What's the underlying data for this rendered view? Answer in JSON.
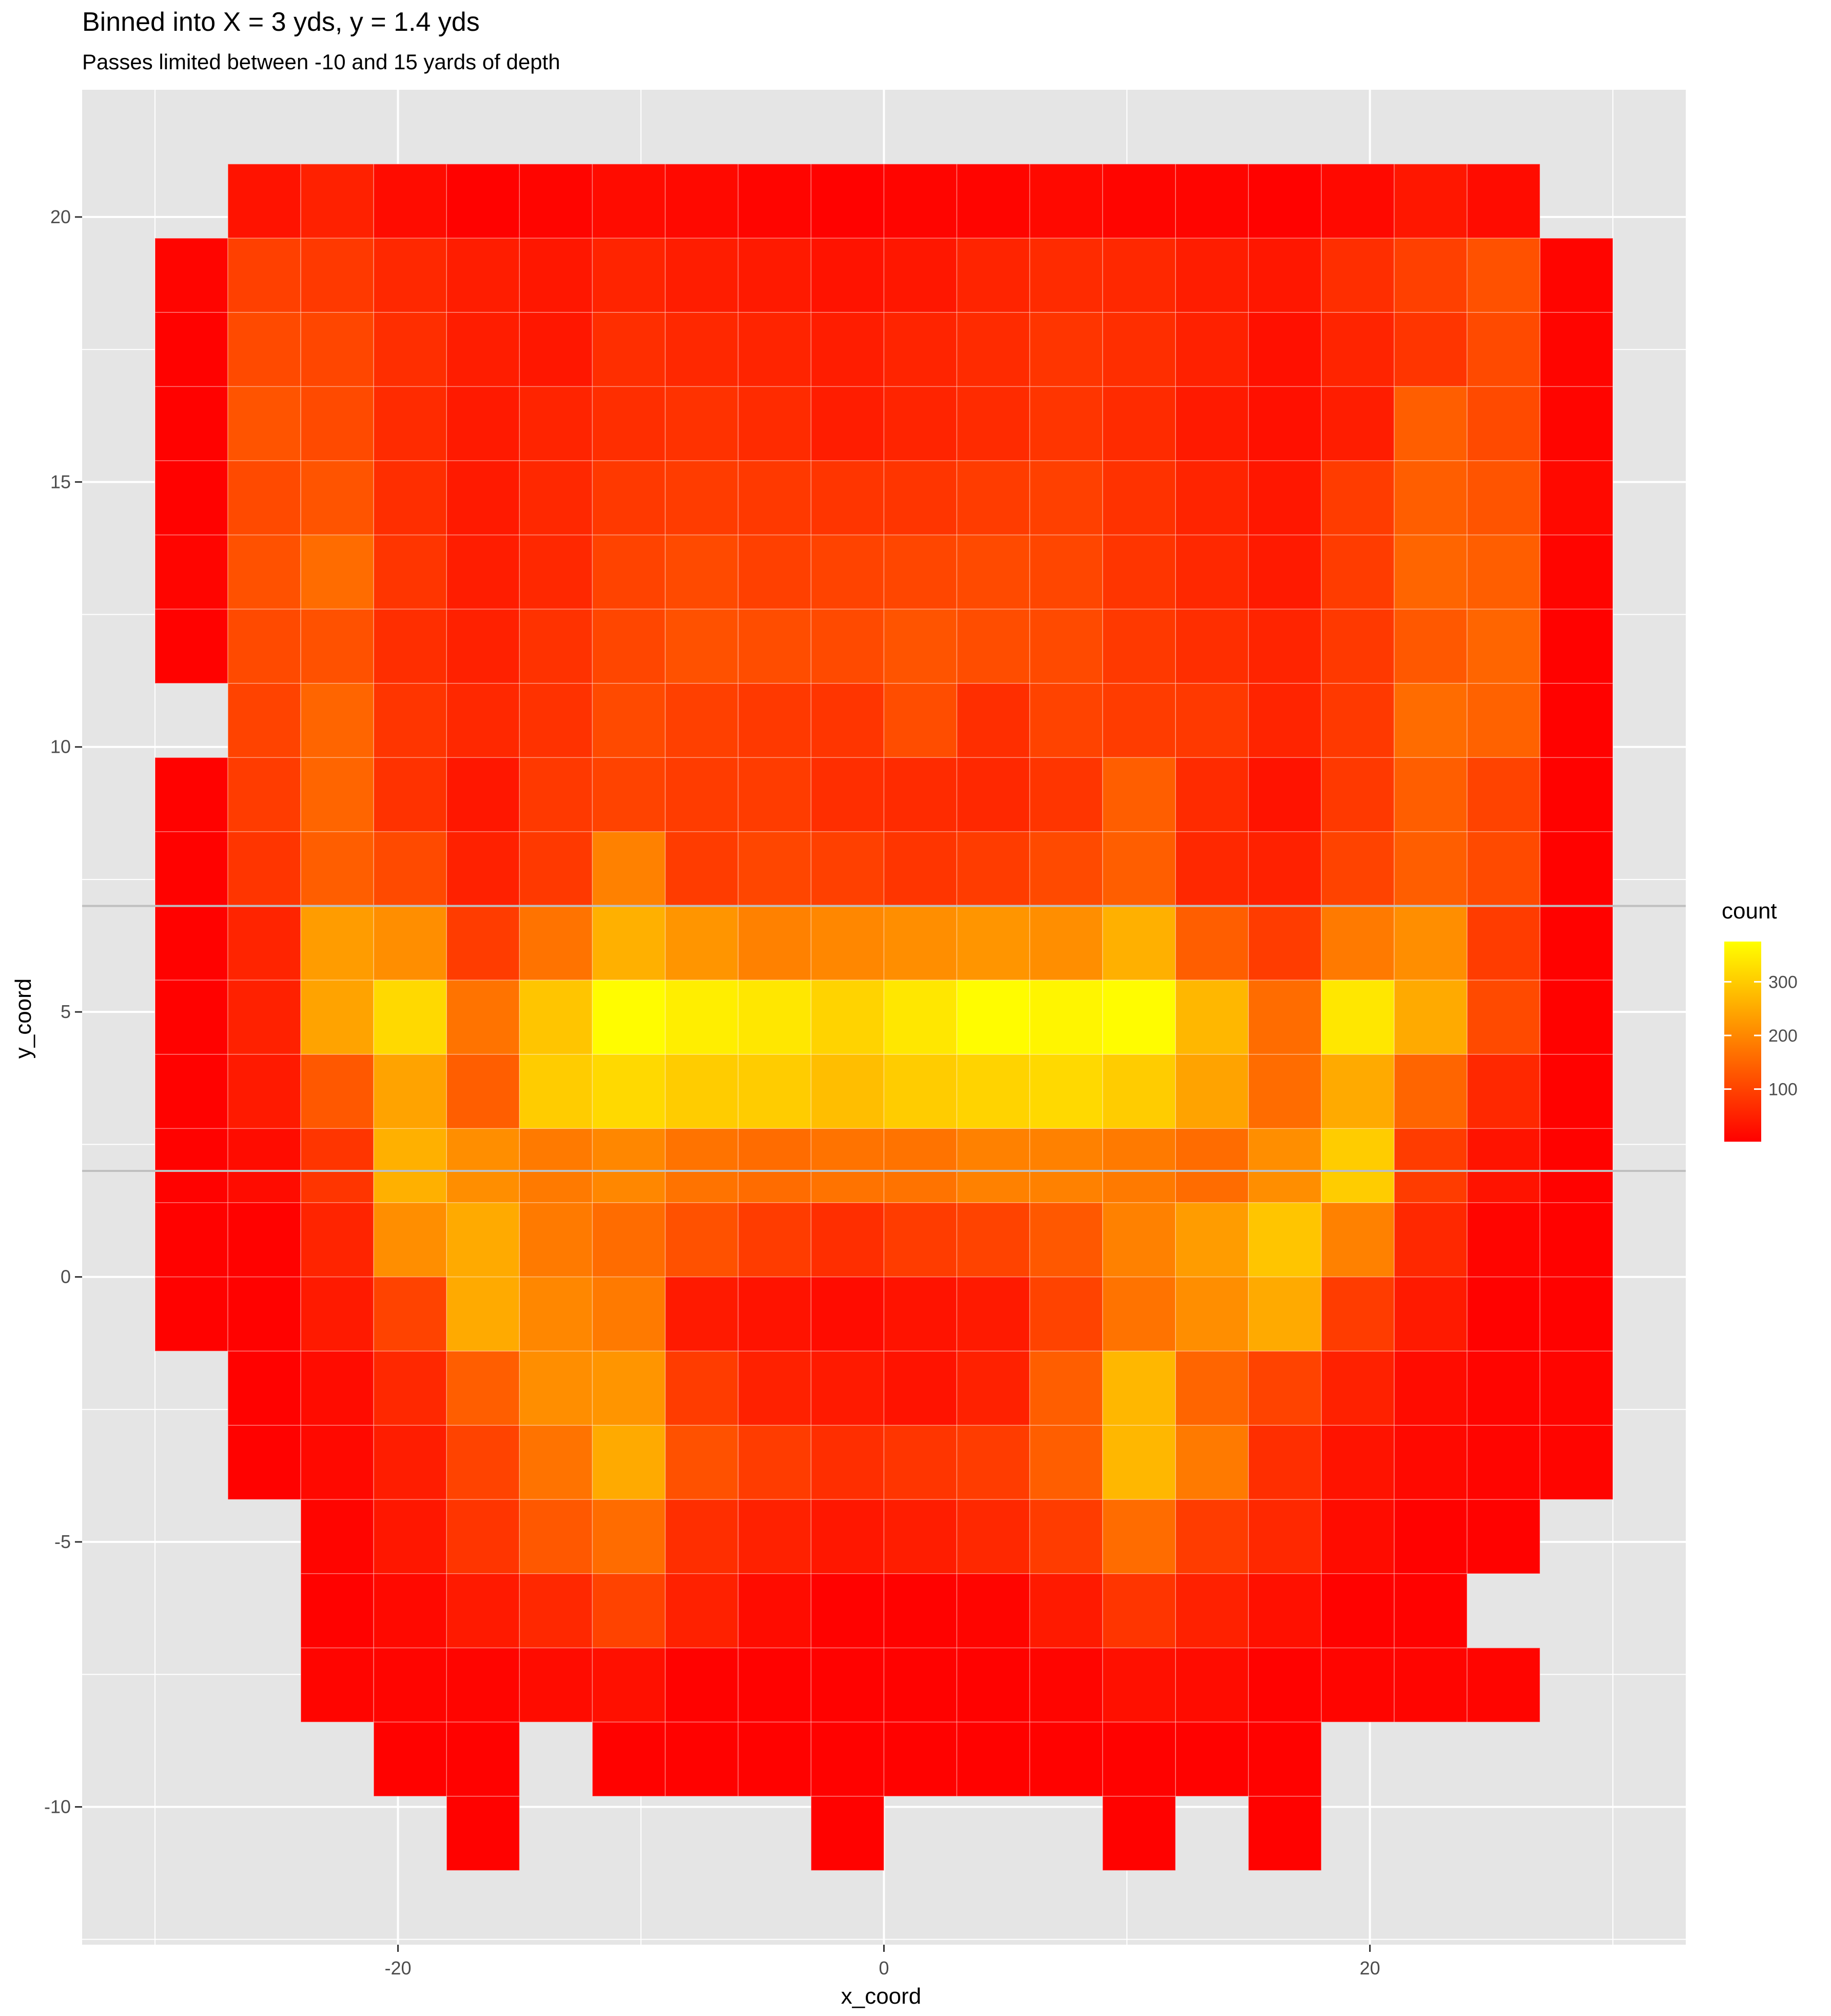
{
  "chart_data": {
    "type": "heatmap",
    "title": "Binned into X = 3 yds, y = 1.4 yds",
    "subtitle": "Passes limited between -10 and 15 yards of depth",
    "xlabel": "x_coord",
    "ylabel": "y_coord",
    "xlim": [
      -33,
      33
    ],
    "ylim": [
      -12.6,
      22.4
    ],
    "x_ticks": [
      -20,
      0,
      20
    ],
    "y_ticks": [
      -10,
      -5,
      0,
      5,
      10,
      15,
      20
    ],
    "bin_width_x": 3,
    "bin_height_y": 1.4,
    "x_centers": [
      -28.5,
      -25.5,
      -22.5,
      -19.5,
      -16.5,
      -13.5,
      -10.5,
      -7.5,
      -4.5,
      -1.5,
      1.5,
      4.5,
      7.5,
      10.5,
      13.5,
      16.5,
      19.5,
      22.5,
      25.5,
      28.5
    ],
    "y_centers": [
      20.3,
      18.9,
      17.5,
      16.1,
      14.7,
      13.3,
      11.9,
      10.5,
      9.1,
      7.7,
      6.3,
      4.9,
      3.5,
      2.1,
      0.7,
      -0.7,
      -2.1,
      -3.5,
      -4.9,
      -6.3,
      -7.7,
      -9.1,
      -10.5
    ],
    "counts": [
      [
        null,
        30,
        50,
        20,
        5,
        10,
        20,
        15,
        10,
        5,
        10,
        10,
        15,
        10,
        10,
        5,
        15,
        35,
        20,
        null
      ],
      [
        10,
        95,
        85,
        60,
        45,
        35,
        55,
        45,
        40,
        30,
        35,
        55,
        65,
        60,
        45,
        35,
        70,
        95,
        120,
        10
      ],
      [
        5,
        110,
        105,
        70,
        45,
        35,
        70,
        60,
        55,
        45,
        55,
        65,
        80,
        70,
        50,
        25,
        55,
        80,
        110,
        10
      ],
      [
        5,
        125,
        110,
        65,
        40,
        55,
        70,
        75,
        65,
        45,
        55,
        65,
        80,
        65,
        40,
        25,
        45,
        140,
        110,
        10
      ],
      [
        5,
        110,
        125,
        70,
        40,
        60,
        85,
        90,
        85,
        80,
        80,
        90,
        95,
        75,
        55,
        35,
        90,
        140,
        125,
        15
      ],
      [
        10,
        120,
        160,
        80,
        45,
        60,
        100,
        110,
        95,
        100,
        105,
        110,
        105,
        80,
        60,
        40,
        90,
        150,
        140,
        10
      ],
      [
        5,
        110,
        120,
        70,
        50,
        75,
        105,
        120,
        115,
        110,
        125,
        115,
        110,
        85,
        70,
        55,
        85,
        130,
        150,
        5
      ],
      [
        null,
        100,
        150,
        80,
        60,
        75,
        110,
        95,
        85,
        80,
        115,
        70,
        100,
        90,
        85,
        55,
        85,
        160,
        145,
        5
      ],
      [
        5,
        90,
        150,
        75,
        35,
        85,
        100,
        90,
        90,
        70,
        65,
        60,
        80,
        140,
        65,
        30,
        85,
        140,
        100,
        5
      ],
      [
        5,
        80,
        140,
        110,
        50,
        85,
        190,
        90,
        105,
        95,
        80,
        90,
        110,
        140,
        60,
        50,
        100,
        140,
        110,
        5
      ],
      [
        5,
        55,
        230,
        210,
        90,
        170,
        260,
        220,
        190,
        200,
        210,
        220,
        210,
        260,
        140,
        90,
        180,
        210,
        90,
        5
      ],
      [
        5,
        50,
        240,
        320,
        170,
        290,
        370,
        350,
        340,
        310,
        340,
        370,
        360,
        370,
        270,
        160,
        340,
        250,
        110,
        5
      ],
      [
        5,
        40,
        130,
        240,
        140,
        300,
        320,
        300,
        300,
        280,
        300,
        310,
        320,
        300,
        240,
        160,
        250,
        150,
        60,
        5
      ],
      [
        5,
        20,
        80,
        260,
        210,
        180,
        200,
        170,
        160,
        170,
        170,
        190,
        190,
        180,
        160,
        210,
        300,
        90,
        30,
        5
      ],
      [
        5,
        5,
        55,
        210,
        250,
        180,
        160,
        120,
        90,
        70,
        90,
        100,
        130,
        190,
        230,
        290,
        190,
        60,
        10,
        5
      ],
      [
        5,
        5,
        40,
        100,
        250,
        200,
        180,
        40,
        30,
        20,
        30,
        40,
        100,
        170,
        210,
        250,
        90,
        40,
        5,
        5
      ],
      [
        null,
        5,
        20,
        60,
        140,
        210,
        220,
        90,
        50,
        40,
        30,
        50,
        140,
        270,
        150,
        100,
        50,
        20,
        10,
        10
      ],
      [
        null,
        5,
        15,
        45,
        100,
        170,
        250,
        120,
        90,
        70,
        80,
        90,
        140,
        270,
        180,
        70,
        30,
        15,
        10,
        10
      ],
      [
        null,
        null,
        10,
        35,
        80,
        130,
        160,
        70,
        50,
        35,
        45,
        60,
        90,
        160,
        90,
        60,
        20,
        5,
        5,
        null
      ],
      [
        null,
        null,
        5,
        15,
        40,
        60,
        100,
        50,
        20,
        5,
        5,
        10,
        40,
        80,
        50,
        25,
        5,
        5,
        null,
        null
      ],
      [
        null,
        null,
        10,
        10,
        10,
        20,
        25,
        5,
        5,
        5,
        5,
        5,
        10,
        25,
        20,
        5,
        10,
        10,
        10,
        null
      ],
      [
        null,
        null,
        null,
        5,
        5,
        null,
        5,
        5,
        5,
        5,
        5,
        5,
        5,
        5,
        5,
        5,
        null,
        null,
        null,
        null
      ],
      [
        null,
        null,
        null,
        null,
        5,
        null,
        null,
        null,
        null,
        5,
        null,
        null,
        null,
        5,
        null,
        5,
        null,
        null,
        null,
        null
      ]
    ],
    "hlines": [
      2,
      7
    ],
    "legend": {
      "title": "count",
      "ticks": [
        100,
        200,
        300
      ],
      "range": [
        2,
        375
      ],
      "color_low": "#ff0000",
      "color_high": "#ffff00",
      "placement": "right"
    },
    "colors": {
      "panel": "#e5e5e5",
      "grid": "#ffffff",
      "hline": "#bfbfbf"
    },
    "grid": true
  }
}
